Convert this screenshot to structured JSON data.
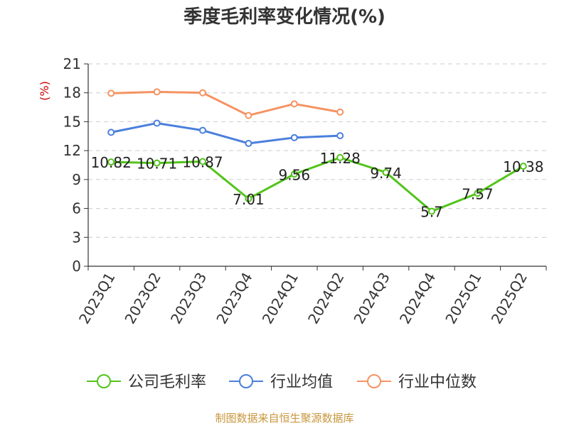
{
  "chart_data": {
    "type": "line",
    "title": "季度毛利率变化情况(%)",
    "ylabel": "(%)",
    "ylabel_color": "#cc0000",
    "categories": [
      "2023Q1",
      "2023Q2",
      "2023Q3",
      "2023Q4",
      "2024Q1",
      "2024Q2",
      "2024Q3",
      "2024Q4",
      "2025Q1",
      "2025Q2"
    ],
    "ylim": [
      0,
      21
    ],
    "yticks": [
      0,
      3,
      6,
      9,
      12,
      15,
      18,
      21
    ],
    "grid": true,
    "legend_position": "bottom",
    "series": [
      {
        "name": "公司毛利率",
        "color": "#52c41a",
        "labels": true,
        "values": [
          10.82,
          10.71,
          10.87,
          7.01,
          9.56,
          11.28,
          9.74,
          5.7,
          7.57,
          10.38
        ],
        "value_labels": [
          "10.82",
          "10.71",
          "10.87",
          "7.01",
          "9.56",
          "11.28",
          "9.74",
          "5.7",
          "7.57",
          "10.38"
        ]
      },
      {
        "name": "行业均值",
        "color": "#4a7fdc",
        "labels": false,
        "values": [
          13.9,
          14.85,
          14.1,
          12.75,
          13.35,
          13.55,
          null,
          null,
          null,
          null
        ]
      },
      {
        "name": "行业中位数",
        "color": "#f59362",
        "labels": false,
        "values": [
          17.95,
          18.1,
          18.0,
          15.65,
          16.85,
          16.0,
          null,
          null,
          null,
          null
        ]
      }
    ]
  },
  "source": {
    "text": "制图数据来自恒生聚源数据库",
    "color": "#c8963c"
  }
}
